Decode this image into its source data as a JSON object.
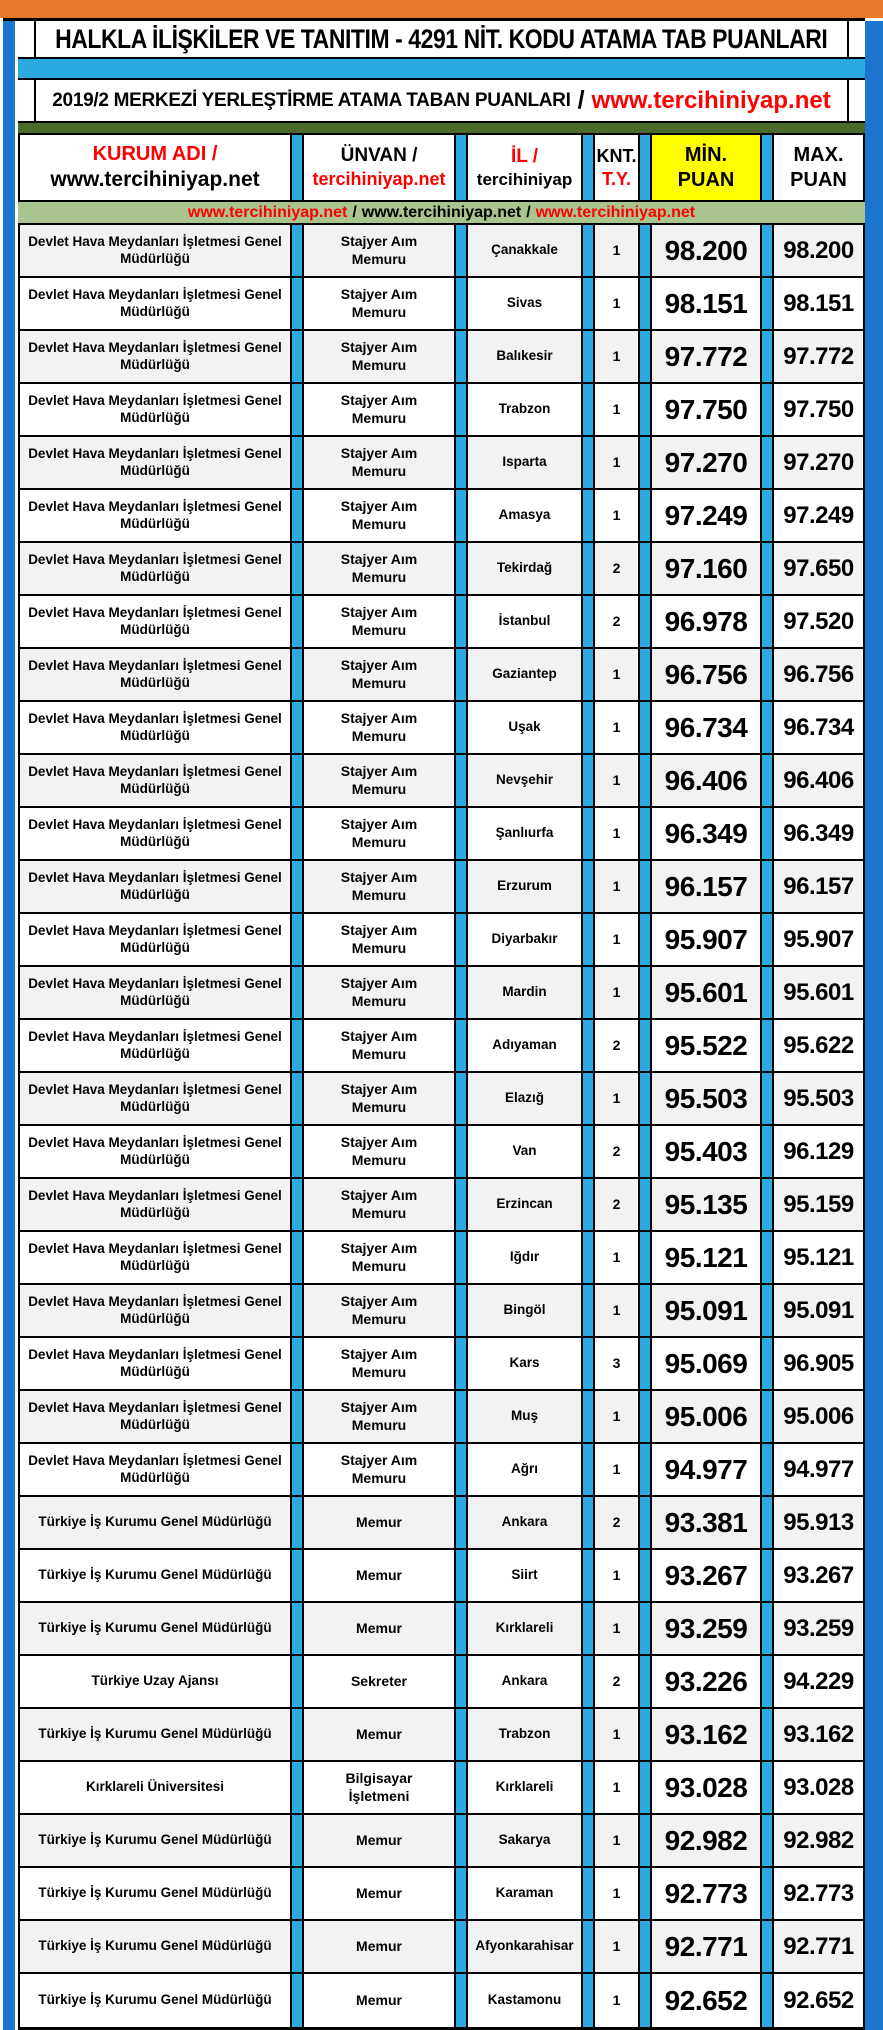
{
  "header": {
    "title": "HALKLA İLİŞKİLER VE TANITIM - 4291 NİT. KODU ATAMA TAB PUANLARI",
    "subtitle_black": "2019/2 MERKEZİ YERLEŞTİRME ATAMA TABAN PUANLARI",
    "subtitle_sep": "/",
    "subtitle_red": "www.tercihiniyap.net"
  },
  "columns": {
    "kurum_red": "KURUM ADI /",
    "kurum_black": "www.tercihiniyap.net",
    "unvan_black": "ÜNVAN /",
    "unvan_red": "tercihiniyap.net",
    "il_red": "İL /",
    "il_black": "tercihiniyap",
    "knt_black": "KNT.",
    "knt_red": "T.Y.",
    "min_line1": "MİN.",
    "min_line2": "PUAN",
    "max_line1": "MAX.",
    "max_line2": "PUAN"
  },
  "watermark_band": {
    "seg1": "www.tercihiniyap.net",
    "sep1": "/",
    "seg2": "www.tercihiniyap.net",
    "sep2": "/",
    "seg3": "www.tercihiniyap.net"
  },
  "colors": {
    "orange": "#E8792B",
    "sideblue": "#1B74CE",
    "cyan": "#2BA9E0",
    "olive": "#4C6B2B",
    "sage": "#A9C48F",
    "yellow": "#FFFF00",
    "red": "#FF0000",
    "rowalt": "#F2F2F2"
  },
  "rows": [
    {
      "kurum": "Devlet Hava Meydanları İşletmesi Genel Müdürlüğü",
      "unvan": "Stajyer Aım Memuru",
      "il": "Çanakkale",
      "knt": "1",
      "min": "98.200",
      "max": "98.200"
    },
    {
      "kurum": "Devlet Hava Meydanları İşletmesi Genel Müdürlüğü",
      "unvan": "Stajyer Aım Memuru",
      "il": "Sivas",
      "knt": "1",
      "min": "98.151",
      "max": "98.151"
    },
    {
      "kurum": "Devlet Hava Meydanları İşletmesi Genel Müdürlüğü",
      "unvan": "Stajyer Aım Memuru",
      "il": "Balıkesir",
      "knt": "1",
      "min": "97.772",
      "max": "97.772"
    },
    {
      "kurum": "Devlet Hava Meydanları İşletmesi Genel Müdürlüğü",
      "unvan": "Stajyer Aım Memuru",
      "il": "Trabzon",
      "knt": "1",
      "min": "97.750",
      "max": "97.750"
    },
    {
      "kurum": "Devlet Hava Meydanları İşletmesi Genel Müdürlüğü",
      "unvan": "Stajyer Aım Memuru",
      "il": "Isparta",
      "knt": "1",
      "min": "97.270",
      "max": "97.270"
    },
    {
      "kurum": "Devlet Hava Meydanları İşletmesi Genel Müdürlüğü",
      "unvan": "Stajyer Aım Memuru",
      "il": "Amasya",
      "knt": "1",
      "min": "97.249",
      "max": "97.249"
    },
    {
      "kurum": "Devlet Hava Meydanları İşletmesi Genel Müdürlüğü",
      "unvan": "Stajyer Aım Memuru",
      "il": "Tekirdağ",
      "knt": "2",
      "min": "97.160",
      "max": "97.650"
    },
    {
      "kurum": "Devlet Hava Meydanları İşletmesi Genel Müdürlüğü",
      "unvan": "Stajyer Aım Memuru",
      "il": "İstanbul",
      "knt": "2",
      "min": "96.978",
      "max": "97.520"
    },
    {
      "kurum": "Devlet Hava Meydanları İşletmesi Genel Müdürlüğü",
      "unvan": "Stajyer Aım Memuru",
      "il": "Gaziantep",
      "knt": "1",
      "min": "96.756",
      "max": "96.756"
    },
    {
      "kurum": "Devlet Hava Meydanları İşletmesi Genel Müdürlüğü",
      "unvan": "Stajyer Aım Memuru",
      "il": "Uşak",
      "knt": "1",
      "min": "96.734",
      "max": "96.734"
    },
    {
      "kurum": "Devlet Hava Meydanları İşletmesi Genel Müdürlüğü",
      "unvan": "Stajyer Aım Memuru",
      "il": "Nevşehir",
      "knt": "1",
      "min": "96.406",
      "max": "96.406"
    },
    {
      "kurum": "Devlet Hava Meydanları İşletmesi Genel Müdürlüğü",
      "unvan": "Stajyer Aım Memuru",
      "il": "Şanlıurfa",
      "knt": "1",
      "min": "96.349",
      "max": "96.349"
    },
    {
      "kurum": "Devlet Hava Meydanları İşletmesi Genel Müdürlüğü",
      "unvan": "Stajyer Aım Memuru",
      "il": "Erzurum",
      "knt": "1",
      "min": "96.157",
      "max": "96.157"
    },
    {
      "kurum": "Devlet Hava Meydanları İşletmesi Genel Müdürlüğü",
      "unvan": "Stajyer Aım Memuru",
      "il": "Diyarbakır",
      "knt": "1",
      "min": "95.907",
      "max": "95.907"
    },
    {
      "kurum": "Devlet Hava Meydanları İşletmesi Genel Müdürlüğü",
      "unvan": "Stajyer Aım Memuru",
      "il": "Mardin",
      "knt": "1",
      "min": "95.601",
      "max": "95.601"
    },
    {
      "kurum": "Devlet Hava Meydanları İşletmesi Genel Müdürlüğü",
      "unvan": "Stajyer Aım Memuru",
      "il": "Adıyaman",
      "knt": "2",
      "min": "95.522",
      "max": "95.622"
    },
    {
      "kurum": "Devlet Hava Meydanları İşletmesi Genel Müdürlüğü",
      "unvan": "Stajyer Aım Memuru",
      "il": "Elazığ",
      "knt": "1",
      "min": "95.503",
      "max": "95.503"
    },
    {
      "kurum": "Devlet Hava Meydanları İşletmesi Genel Müdürlüğü",
      "unvan": "Stajyer Aım Memuru",
      "il": "Van",
      "knt": "2",
      "min": "95.403",
      "max": "96.129"
    },
    {
      "kurum": "Devlet Hava Meydanları İşletmesi Genel Müdürlüğü",
      "unvan": "Stajyer Aım Memuru",
      "il": "Erzincan",
      "knt": "2",
      "min": "95.135",
      "max": "95.159"
    },
    {
      "kurum": "Devlet Hava Meydanları İşletmesi Genel Müdürlüğü",
      "unvan": "Stajyer Aım Memuru",
      "il": "Iğdır",
      "knt": "1",
      "min": "95.121",
      "max": "95.121"
    },
    {
      "kurum": "Devlet Hava Meydanları İşletmesi Genel Müdürlüğü",
      "unvan": "Stajyer Aım Memuru",
      "il": "Bingöl",
      "knt": "1",
      "min": "95.091",
      "max": "95.091"
    },
    {
      "kurum": "Devlet Hava Meydanları İşletmesi Genel Müdürlüğü",
      "unvan": "Stajyer Aım Memuru",
      "il": "Kars",
      "knt": "3",
      "min": "95.069",
      "max": "96.905"
    },
    {
      "kurum": "Devlet Hava Meydanları İşletmesi Genel Müdürlüğü",
      "unvan": "Stajyer Aım Memuru",
      "il": "Muş",
      "knt": "1",
      "min": "95.006",
      "max": "95.006"
    },
    {
      "kurum": "Devlet Hava Meydanları İşletmesi Genel Müdürlüğü",
      "unvan": "Stajyer Aım Memuru",
      "il": "Ağrı",
      "knt": "1",
      "min": "94.977",
      "max": "94.977"
    },
    {
      "kurum": "Türkiye İş Kurumu Genel Müdürlüğü",
      "unvan": "Memur",
      "il": "Ankara",
      "knt": "2",
      "min": "93.381",
      "max": "95.913"
    },
    {
      "kurum": "Türkiye İş Kurumu Genel Müdürlüğü",
      "unvan": "Memur",
      "il": "Siirt",
      "knt": "1",
      "min": "93.267",
      "max": "93.267"
    },
    {
      "kurum": "Türkiye İş Kurumu Genel Müdürlüğü",
      "unvan": "Memur",
      "il": "Kırklareli",
      "knt": "1",
      "min": "93.259",
      "max": "93.259"
    },
    {
      "kurum": "Türkiye Uzay Ajansı",
      "unvan": "Sekreter",
      "il": "Ankara",
      "knt": "2",
      "min": "93.226",
      "max": "94.229"
    },
    {
      "kurum": "Türkiye İş Kurumu Genel Müdürlüğü",
      "unvan": "Memur",
      "il": "Trabzon",
      "knt": "1",
      "min": "93.162",
      "max": "93.162"
    },
    {
      "kurum": "Kırklareli Üniversitesi",
      "unvan": "Bilgisayar İşletmeni",
      "il": "Kırklareli",
      "knt": "1",
      "min": "93.028",
      "max": "93.028"
    },
    {
      "kurum": "Türkiye İş Kurumu Genel Müdürlüğü",
      "unvan": "Memur",
      "il": "Sakarya",
      "knt": "1",
      "min": "92.982",
      "max": "92.982"
    },
    {
      "kurum": "Türkiye İş Kurumu Genel Müdürlüğü",
      "unvan": "Memur",
      "il": "Karaman",
      "knt": "1",
      "min": "92.773",
      "max": "92.773"
    },
    {
      "kurum": "Türkiye İş Kurumu Genel Müdürlüğü",
      "unvan": "Memur",
      "il": "Afyonkarahisar",
      "knt": "1",
      "min": "92.771",
      "max": "92.771"
    },
    {
      "kurum": "Türkiye İş Kurumu Genel Müdürlüğü",
      "unvan": "Memur",
      "il": "Kastamonu",
      "knt": "1",
      "min": "92.652",
      "max": "92.652"
    }
  ]
}
